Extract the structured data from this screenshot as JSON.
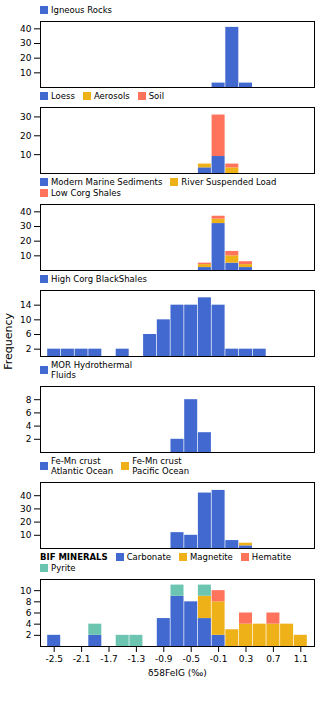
{
  "chart_data": [
    {
      "type": "bar",
      "stacked": true,
      "xlim": [
        -2.7,
        1.3
      ],
      "ylim": [
        0,
        45
      ],
      "yticks": [
        10,
        20,
        30,
        40
      ],
      "tick_labels": "y",
      "legend": "upper left",
      "series": [
        {
          "name": "Igneous Rocks",
          "x": [
            -0.1,
            0.1,
            0.3
          ],
          "values": [
            3,
            41,
            3
          ]
        }
      ]
    },
    {
      "type": "bar",
      "stacked": true,
      "xlim": [
        -2.7,
        1.3
      ],
      "ylim": [
        0,
        35
      ],
      "yticks": [
        10,
        20,
        30
      ],
      "tick_labels": "y",
      "legend": "upper left",
      "series": [
        {
          "name": "Loess",
          "x": [
            -0.3,
            -0.1
          ],
          "values": [
            3,
            9
          ]
        },
        {
          "name": "Aerosols",
          "x": [
            -0.3,
            0.1
          ],
          "values": [
            2,
            3
          ]
        },
        {
          "name": "Soil",
          "x": [
            -0.1,
            0.1
          ],
          "values": [
            22,
            2
          ]
        }
      ]
    },
    {
      "type": "bar",
      "stacked": true,
      "xlim": [
        -2.7,
        1.3
      ],
      "ylim": [
        0,
        45
      ],
      "yticks": [
        10,
        20,
        30,
        40
      ],
      "tick_labels": "y",
      "legend": "upper left",
      "series": [
        {
          "name": "Modern Marine Sediments",
          "x": [
            -0.3,
            -0.1,
            0.1,
            0.3
          ],
          "values": [
            2,
            32,
            5,
            2
          ]
        },
        {
          "name": "River Suspended Load",
          "x": [
            -0.3,
            -0.1,
            0.1,
            0.3
          ],
          "values": [
            2,
            3,
            5,
            2
          ]
        },
        {
          "name": "Low Corg Shales",
          "x": [
            -0.3,
            -0.1,
            0.1,
            0.3
          ],
          "values": [
            1,
            2,
            3,
            2
          ]
        }
      ]
    },
    {
      "type": "bar",
      "stacked": true,
      "xlim": [
        -2.7,
        1.3
      ],
      "ylim": [
        0,
        18
      ],
      "yticks": [
        2,
        6,
        10,
        14
      ],
      "tick_labels": "y",
      "legend": "upper left",
      "y_label": "Frequency",
      "series": [
        {
          "name": "High Corg BlackShales",
          "x": [
            -2.5,
            -2.3,
            -2.1,
            -1.9,
            -1.7,
            -1.5,
            -1.3,
            -1.1,
            -0.9,
            -0.7,
            -0.5,
            -0.3,
            -0.1,
            0.1,
            0.3,
            0.5
          ],
          "values": [
            2,
            2,
            2,
            2,
            0,
            2,
            0,
            6,
            10,
            14,
            14,
            16,
            14,
            2,
            2,
            2
          ]
        }
      ]
    },
    {
      "type": "bar",
      "stacked": true,
      "xlim": [
        -2.7,
        1.3
      ],
      "ylim": [
        0,
        10
      ],
      "yticks": [
        2,
        4,
        6,
        8
      ],
      "tick_labels": "y",
      "legend": "upper left",
      "series": [
        {
          "name": "MOR Hydrothermal\nFluids",
          "x": [
            -0.7,
            -0.5,
            -0.3,
            -0.1
          ],
          "values": [
            2,
            8,
            3,
            0
          ]
        }
      ]
    },
    {
      "type": "bar",
      "stacked": true,
      "xlim": [
        -2.7,
        1.3
      ],
      "ylim": [
        0,
        50
      ],
      "yticks": [
        10,
        20,
        30,
        40
      ],
      "tick_labels": "y",
      "legend": "upper left",
      "series": [
        {
          "name": "Fe-Mn crust\nAtlantic Ocean",
          "x": [
            -0.7,
            -0.5,
            -0.3,
            -0.1,
            0.1,
            0.3
          ],
          "values": [
            12,
            10,
            42,
            44,
            6,
            2
          ]
        },
        {
          "name": "Fe-Mn crust\nPacific Ocean",
          "x": [
            -0.7,
            -0.5,
            -0.3,
            -0.1,
            0.1,
            0.3
          ],
          "values": [
            0,
            0,
            0,
            0,
            0,
            2
          ]
        }
      ]
    },
    {
      "type": "bar",
      "stacked": true,
      "xlim": [
        -2.7,
        1.3
      ],
      "ylim": [
        0,
        12
      ],
      "yticks": [
        2,
        4,
        6,
        8,
        10
      ],
      "legend": "upper left",
      "xticks": [
        -2.5,
        -2.1,
        -1.7,
        -1.3,
        -0.9,
        -0.5,
        -0.1,
        0.3,
        0.7,
        1.1
      ],
      "x_label": "δ58FeIG (‰)",
      "annotation": "BIF MINERALS",
      "series": [
        {
          "name": "Carbonate",
          "x": [
            -2.5,
            -1.9,
            -0.9,
            -0.7,
            -0.5,
            -0.3,
            -0.1
          ],
          "values": [
            2,
            2,
            5,
            9,
            8,
            5,
            2
          ]
        },
        {
          "name": "Magnetite",
          "x": [
            -0.9,
            -0.7,
            -0.5,
            -0.3,
            -0.1,
            0.1,
            0.3,
            0.5,
            0.7,
            0.9,
            1.1
          ],
          "values": [
            0,
            0,
            0,
            4,
            6,
            3,
            4,
            4,
            4,
            4,
            2
          ]
        },
        {
          "name": "Hematite",
          "x": [
            -0.3,
            -0.1,
            0.1,
            0.3,
            0.5,
            0.7
          ],
          "values": [
            0,
            2,
            0,
            2,
            0,
            2
          ]
        },
        {
          "name": "Pyrite",
          "x": [
            -2.5,
            -1.9,
            -1.5,
            -1.3,
            -0.7,
            -0.5,
            -0.3
          ],
          "values": [
            0,
            2,
            2,
            2,
            2,
            0,
            2
          ]
        }
      ]
    }
  ]
}
